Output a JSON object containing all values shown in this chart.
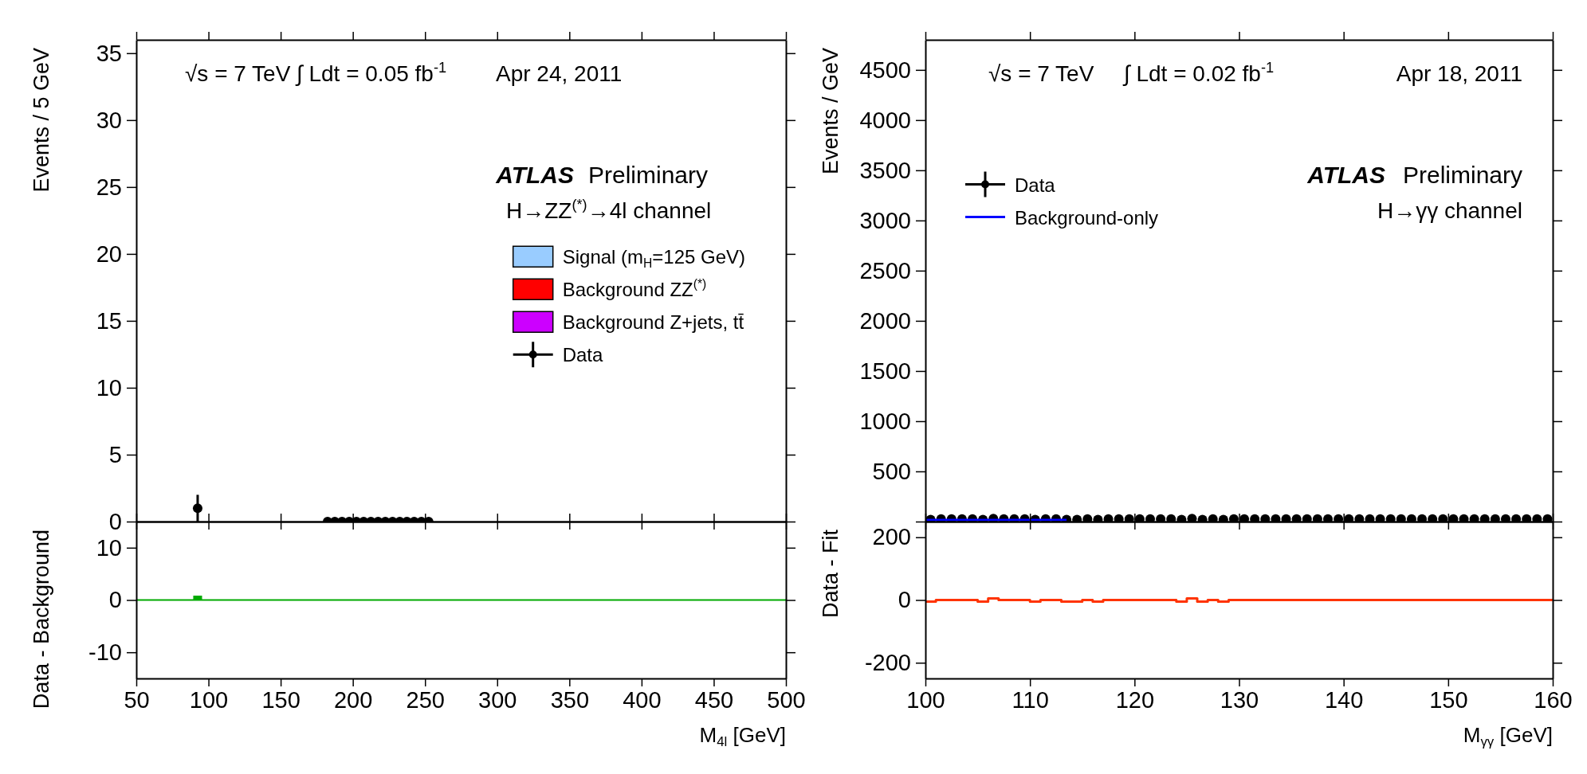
{
  "chart_data": [
    {
      "type": "scatter",
      "ylabel": "Events / 5 GeV",
      "xlim": [
        50,
        500
      ],
      "xticks": [
        50,
        100,
        150,
        200,
        250,
        300,
        350,
        400,
        450,
        500
      ],
      "ylim": [
        0,
        36
      ],
      "yticks": [
        0,
        5,
        10,
        15,
        20,
        25,
        30,
        35
      ],
      "tick_labels": "y",
      "legend": "right",
      "marker": "circle",
      "annotations": [
        "√s = 7 TeV",
        "∫ Ldt = 0.05 fb$^{-1}$",
        "Apr 24, 2011",
        "ATLAS",
        "Preliminary",
        "H→ZZ$^{(*)}$→4l channel"
      ],
      "series": [
        {
          "name": "Signal (m$_{H}$=125 GeV)",
          "type": "bar",
          "color": "#99ccff"
        },
        {
          "name": "Background ZZ$^{(*)}$",
          "type": "bar",
          "color": "#ff0000"
        },
        {
          "name": "Background Z+jets, tt̄",
          "type": "bar",
          "color": "#cc00ff"
        },
        {
          "name": "Data",
          "color": "#000000",
          "x": [
            92.5,
            182.5,
            187.5,
            192.5,
            197.5,
            202.5,
            207.5,
            212.5,
            217.5,
            222.5,
            227.5,
            232.5,
            237.5,
            242.5,
            247.5,
            252.5
          ],
          "values": [
            1,
            0,
            0,
            0,
            0,
            0,
            0,
            0,
            0,
            0,
            0,
            0,
            0,
            0,
            0,
            0
          ],
          "errors": [
            [
              0,
              2
            ],
            null,
            null,
            null,
            null,
            null,
            null,
            null,
            null,
            null,
            null,
            null,
            null,
            null,
            null,
            null
          ],
          "xerrors": [
            2.5,
            2.5,
            2.5,
            2.5,
            2.5,
            2.5,
            2.5,
            2.5,
            2.5,
            2.5,
            2.5,
            2.5,
            2.5,
            2.5,
            2.5,
            2.5
          ]
        }
      ]
    },
    {
      "type": "area",
      "ylabel": "Data - Background",
      "xlabel": "M$_{4l}$ [GeV]",
      "xlim": [
        50,
        500
      ],
      "xticks": [
        50,
        100,
        150,
        200,
        250,
        300,
        350,
        400,
        450,
        500
      ],
      "ylim": [
        -15,
        15
      ],
      "yticks": [
        -10,
        0,
        10
      ],
      "series": [
        {
          "color": "#00aa00",
          "x": [
            50,
            90,
            95,
            500
          ],
          "values": [
            0,
            0.7,
            0,
            0
          ]
        }
      ]
    },
    {
      "type": "scatter",
      "ylabel": "Events / GeV",
      "xlim": [
        100,
        160
      ],
      "xticks": [
        100,
        110,
        120,
        130,
        140,
        150,
        160
      ],
      "ylim": [
        0,
        4800
      ],
      "yticks": [
        {
          "value": 0,
          "label": null
        },
        500,
        1000,
        1500,
        2000,
        2500,
        3000,
        3500,
        4000,
        4500
      ],
      "tick_labels": "y",
      "legend": "top left",
      "marker": "circle",
      "annotations": [
        "√s = 7 TeV",
        "∫ Ldt = 0.02 fb$^{-1}$",
        "Apr 18, 2011",
        "ATLAS",
        "Preliminary",
        "H→γγ channel"
      ],
      "series": [
        {
          "name": "Data",
          "color": "#000000",
          "x": [
            100.5,
            101.5,
            102.5,
            103.5,
            104.5,
            105.5,
            106.5,
            107.5,
            108.5,
            109.5,
            110.5,
            111.5,
            112.5,
            113.5,
            114.5,
            115.5,
            116.5,
            117.5,
            118.5,
            119.5,
            120.5,
            121.5,
            122.5,
            123.5,
            124.5,
            125.5,
            126.5,
            127.5,
            128.5,
            129.5,
            130.5,
            131.5,
            132.5,
            133.5,
            134.5,
            135.5,
            136.5,
            137.5,
            138.5,
            139.5,
            140.5,
            141.5,
            142.5,
            143.5,
            144.5,
            145.5,
            146.5,
            147.5,
            148.5,
            149.5,
            150.5,
            151.5,
            152.5,
            153.5,
            154.5,
            155.5,
            156.5,
            157.5,
            158.5,
            159.5
          ],
          "values": [
            20,
            25,
            25,
            25,
            25,
            20,
            30,
            25,
            25,
            25,
            20,
            25,
            25,
            20,
            20,
            25,
            20,
            25,
            25,
            25,
            25,
            25,
            25,
            25,
            20,
            30,
            20,
            25,
            20,
            25,
            25,
            25,
            25,
            25,
            25,
            25,
            25,
            25,
            25,
            25,
            25,
            25,
            25,
            25,
            25,
            25,
            25,
            25,
            25,
            25,
            25,
            25,
            25,
            25,
            25,
            25,
            25,
            25,
            25,
            25
          ]
        },
        {
          "name": "Background-only",
          "type": "line",
          "marker": "none",
          "color": "#0000ff",
          "x": [
            100,
            113.5
          ],
          "values": [
            15,
            15
          ]
        }
      ]
    },
    {
      "type": "step",
      "ylabel": "Data - Fit",
      "xlabel": "M$_{γγ}$ [GeV]",
      "xlim": [
        100,
        160
      ],
      "xticks": [
        100,
        110,
        120,
        130,
        140,
        150,
        160
      ],
      "ylim": [
        -250,
        250
      ],
      "yticks": [
        -200,
        0,
        200
      ],
      "series": [
        {
          "color": "#ff3300",
          "x": [
            100,
            101,
            105,
            106,
            107,
            110,
            111,
            113,
            115,
            116,
            117,
            124,
            125,
            126,
            127,
            128,
            129,
            160
          ],
          "values": [
            -5,
            0,
            -5,
            5,
            0,
            -5,
            0,
            -5,
            0,
            -5,
            0,
            -5,
            5,
            -5,
            0,
            -5,
            0,
            0
          ]
        }
      ]
    }
  ]
}
